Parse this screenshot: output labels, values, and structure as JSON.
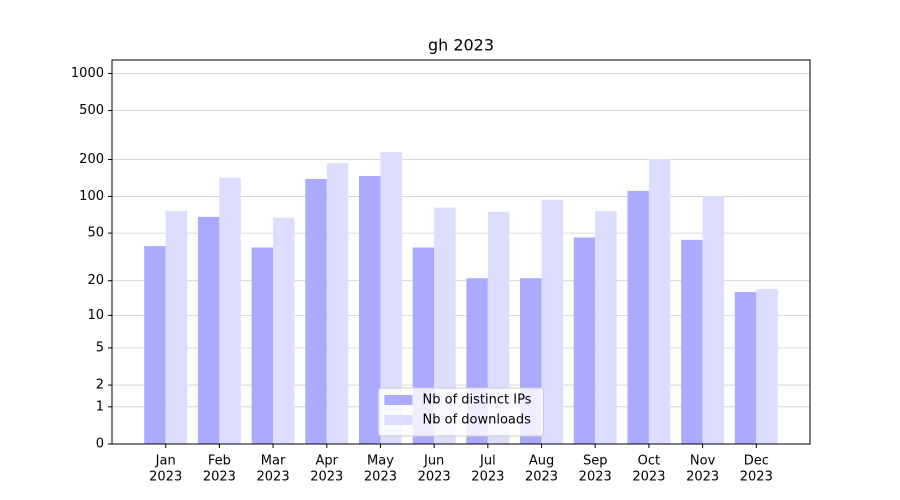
{
  "chart_data": {
    "type": "bar",
    "title": "gh 2023",
    "categories": [
      [
        "Jan",
        "2023"
      ],
      [
        "Feb",
        "2023"
      ],
      [
        "Mar",
        "2023"
      ],
      [
        "Apr",
        "2023"
      ],
      [
        "May",
        "2023"
      ],
      [
        "Jun",
        "2023"
      ],
      [
        "Jul",
        "2023"
      ],
      [
        "Aug",
        "2023"
      ],
      [
        "Sep",
        "2023"
      ],
      [
        "Oct",
        "2023"
      ],
      [
        "Nov",
        "2023"
      ],
      [
        "Dec",
        "2023"
      ]
    ],
    "series": [
      {
        "name": "Nb of distinct IPs",
        "color": "#aaaaff",
        "values": [
          39,
          68,
          38,
          139,
          147,
          38,
          21,
          21,
          46,
          111,
          44,
          16
        ]
      },
      {
        "name": "Nb of downloads",
        "color": "#ddddff",
        "values": [
          76,
          142,
          67,
          187,
          230,
          81,
          75,
          94,
          76,
          202,
          101,
          17
        ]
      }
    ],
    "yscale": "log1p",
    "ylim": [
      0,
      1285
    ],
    "yticks": [
      0,
      1,
      2,
      5,
      10,
      20,
      50,
      100,
      200,
      500,
      1000
    ],
    "grid": true,
    "legend": "lower center"
  }
}
